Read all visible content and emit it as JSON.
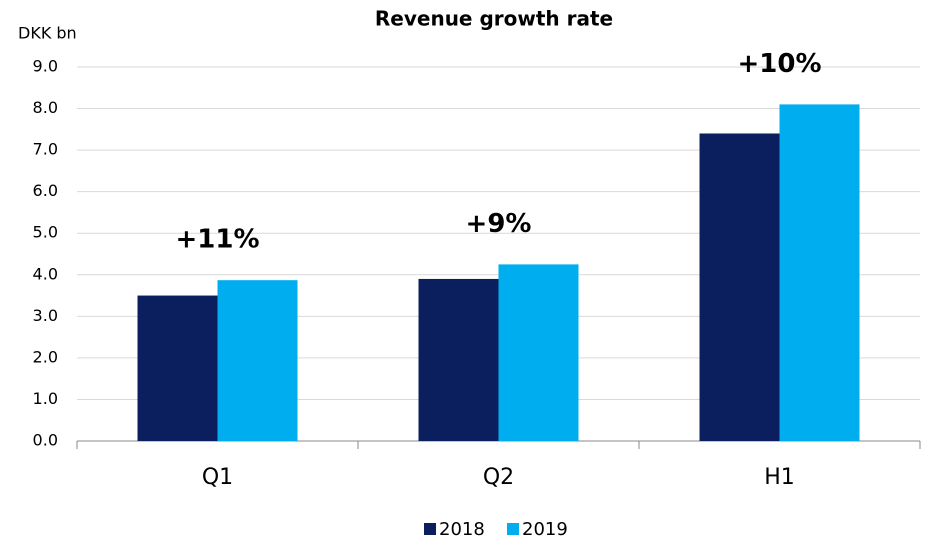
{
  "chart_data": {
    "type": "bar",
    "title": "Revenue growth rate",
    "y_axis_label": "DKK bn",
    "categories": [
      "Q1",
      "Q2",
      "H1"
    ],
    "series": [
      {
        "name": "2018",
        "color": "#0b1f5e",
        "values": [
          3.5,
          3.9,
          7.4
        ]
      },
      {
        "name": "2019",
        "color": "#00aeef",
        "values": [
          3.87,
          4.25,
          8.1
        ]
      }
    ],
    "annotations": [
      "+11%",
      "+9%",
      "+10%"
    ],
    "ylim": [
      0,
      9
    ],
    "yticks": [
      {
        "value": 0,
        "label": "0.0"
      },
      {
        "value": 1,
        "label": "1.0"
      },
      {
        "value": 2,
        "label": "2.0"
      },
      {
        "value": 3,
        "label": "3.0"
      },
      {
        "value": 4,
        "label": "4.0"
      },
      {
        "value": 5,
        "label": "5.0"
      },
      {
        "value": 6,
        "label": "6.0"
      },
      {
        "value": 7,
        "label": "7.0"
      },
      {
        "value": 8,
        "label": "8.0"
      },
      {
        "value": 9,
        "label": "9.0"
      }
    ],
    "grid": true,
    "legend": "bottom"
  }
}
